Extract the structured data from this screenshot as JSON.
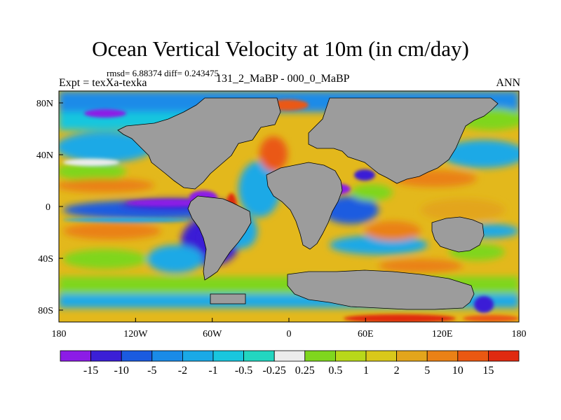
{
  "title": "Ocean Vertical Velocity at 10m (in cm/day)",
  "stats": "rmsd= 6.88374 diff= 0.243475",
  "experiment": "Expt = texXa-texka",
  "comparison": "131_2_MaBP - 000_0_MaBP",
  "season": "ANN",
  "axes": {
    "lon_ticks": [
      "180",
      "120W",
      "60W",
      "0",
      "60E",
      "120E",
      "180"
    ],
    "lat_ticks": [
      "80N",
      "40N",
      "0",
      "40S",
      "80S"
    ]
  },
  "colorbar": {
    "colors": [
      "#8c1ce6",
      "#3b1fd6",
      "#1b5be0",
      "#1a8be8",
      "#1aa9e6",
      "#19c6de",
      "#22d6c0",
      "#ececec",
      "#7fd61e",
      "#b8d81a",
      "#d9c81a",
      "#e3a51c",
      "#ea8116",
      "#ea5812",
      "#e02a10"
    ],
    "labels": [
      "-15",
      "-10",
      "-5",
      "-2",
      "-1",
      "-0.5",
      "-0.25",
      "0.25",
      "0.5",
      "1",
      "2",
      "5",
      "10",
      "15"
    ]
  },
  "map_colors": {
    "land": "#9c9c9c",
    "ocean_base": "#e3b81c",
    "frame": "#000000"
  }
}
